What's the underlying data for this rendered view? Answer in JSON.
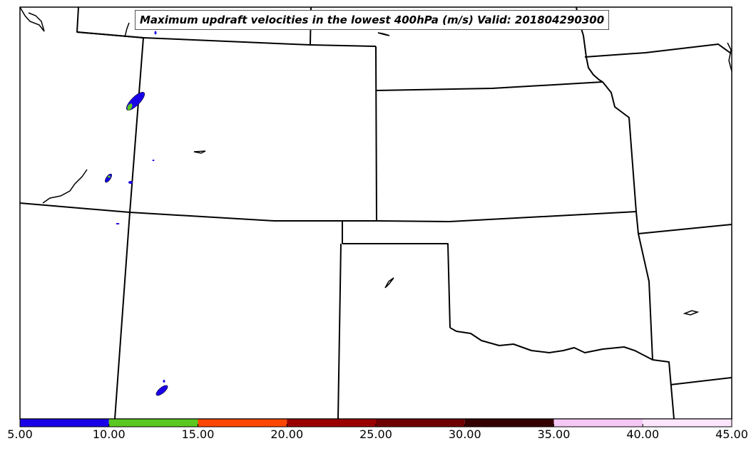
{
  "title": "Maximum updraft velocities in the lowest 400hPa (m/s) Valid: 201804290300",
  "colorbar": {
    "ticks": [
      "5.00",
      "10.00",
      "15.00",
      "20.00",
      "25.00",
      "30.00",
      "35.00",
      "40.00",
      "45.00"
    ],
    "colors": [
      "#1a00e6",
      "#5ac81e",
      "#ff4600",
      "#9b0000",
      "#6e0000",
      "#350000",
      "#f5c8f5",
      "#fde6fd"
    ]
  },
  "map": {
    "border_color": "#000000",
    "background": "#ffffff"
  }
}
